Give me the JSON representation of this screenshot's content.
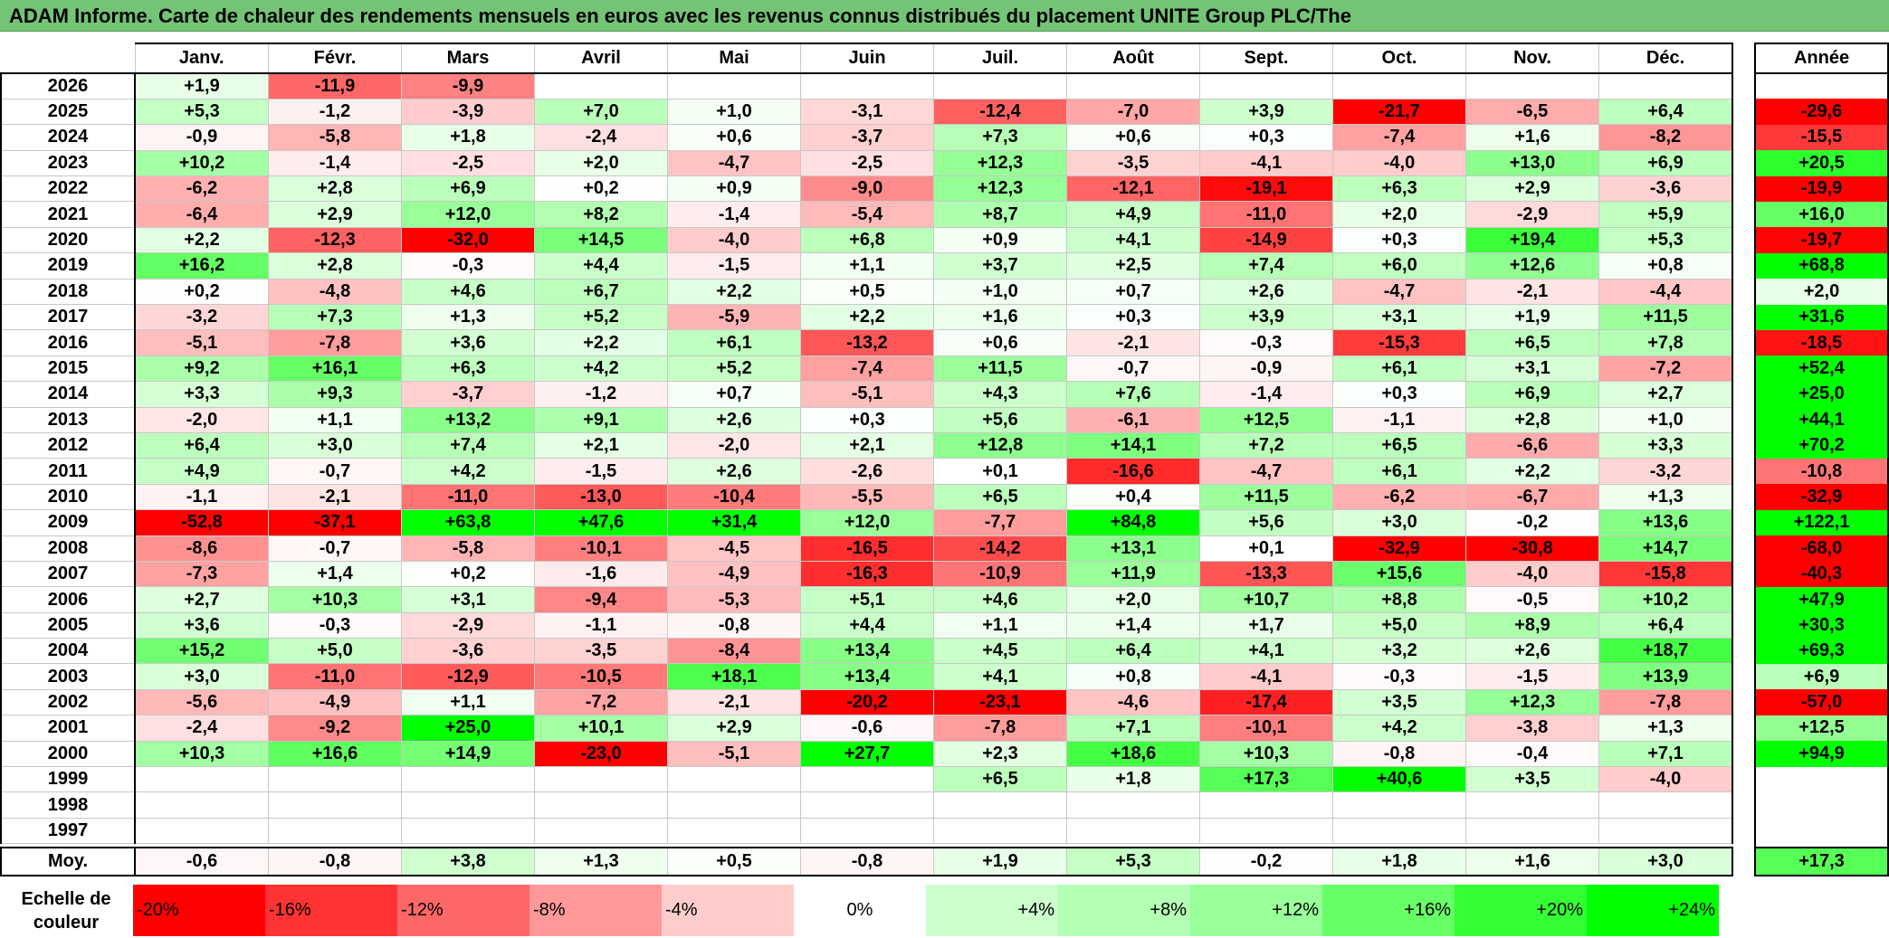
{
  "title": "ADAM Informe. Carte de chaleur des rendements mensuels en euros avec les revenus connus distribués du placement UNITE Group PLC/The",
  "chart_data": {
    "type": "heatmap",
    "columns": [
      "Janv.",
      "Févr.",
      "Mars",
      "Avril",
      "Mai",
      "Juin",
      "Juil.",
      "Août",
      "Sept.",
      "Oct.",
      "Nov.",
      "Déc."
    ],
    "annual_label": "Année",
    "avg_label": "Moy.",
    "rows": [
      {
        "year": "2026",
        "values": [
          "+1,9",
          "-11,9",
          "-9,9",
          "",
          "",
          "",
          "",
          "",
          "",
          "",
          "",
          ""
        ],
        "annual": ""
      },
      {
        "year": "2025",
        "values": [
          "+5,3",
          "-1,2",
          "-3,9",
          "+7,0",
          "+1,0",
          "-3,1",
          "-12,4",
          "-7,0",
          "+3,9",
          "-21,7",
          "-6,5",
          "+6,4"
        ],
        "annual": "-29,6"
      },
      {
        "year": "2024",
        "values": [
          "-0,9",
          "-5,8",
          "+1,8",
          "-2,4",
          "+0,6",
          "-3,7",
          "+7,3",
          "+0,6",
          "+0,3",
          "-7,4",
          "+1,6",
          "-8,2"
        ],
        "annual": "-15,5"
      },
      {
        "year": "2023",
        "values": [
          "+10,2",
          "-1,4",
          "-2,5",
          "+2,0",
          "-4,7",
          "-2,5",
          "+12,3",
          "-3,5",
          "-4,1",
          "-4,0",
          "+13,0",
          "+6,9"
        ],
        "annual": "+20,5"
      },
      {
        "year": "2022",
        "values": [
          "-6,2",
          "+2,8",
          "+6,9",
          "+0,2",
          "+0,9",
          "-9,0",
          "+12,3",
          "-12,1",
          "-19,1",
          "+6,3",
          "+2,9",
          "-3,6"
        ],
        "annual": "-19,9"
      },
      {
        "year": "2021",
        "values": [
          "-6,4",
          "+2,9",
          "+12,0",
          "+8,2",
          "-1,4",
          "-5,4",
          "+8,7",
          "+4,9",
          "-11,0",
          "+2,0",
          "-2,9",
          "+5,9"
        ],
        "annual": "+16,0"
      },
      {
        "year": "2020",
        "values": [
          "+2,2",
          "-12,3",
          "-32,0",
          "+14,5",
          "-4,0",
          "+6,8",
          "+0,9",
          "+4,1",
          "-14,9",
          "+0,3",
          "+19,4",
          "+5,3"
        ],
        "annual": "-19,7"
      },
      {
        "year": "2019",
        "values": [
          "+16,2",
          "+2,8",
          "-0,3",
          "+4,4",
          "-1,5",
          "+1,1",
          "+3,7",
          "+2,5",
          "+7,4",
          "+6,0",
          "+12,6",
          "+0,8"
        ],
        "annual": "+68,8"
      },
      {
        "year": "2018",
        "values": [
          "+0,2",
          "-4,8",
          "+4,6",
          "+6,7",
          "+2,2",
          "+0,5",
          "+1,0",
          "+0,7",
          "+2,6",
          "-4,7",
          "-2,1",
          "-4,4"
        ],
        "annual": "+2,0"
      },
      {
        "year": "2017",
        "values": [
          "-3,2",
          "+7,3",
          "+1,3",
          "+5,2",
          "-5,9",
          "+2,2",
          "+1,6",
          "+0,3",
          "+3,9",
          "+3,1",
          "+1,9",
          "+11,5"
        ],
        "annual": "+31,6"
      },
      {
        "year": "2016",
        "values": [
          "-5,1",
          "-7,8",
          "+3,6",
          "+2,2",
          "+6,1",
          "-13,2",
          "+0,6",
          "-2,1",
          "-0,3",
          "-15,3",
          "+6,5",
          "+7,8"
        ],
        "annual": "-18,5"
      },
      {
        "year": "2015",
        "values": [
          "+9,2",
          "+16,1",
          "+6,3",
          "+4,2",
          "+5,2",
          "-7,4",
          "+11,5",
          "-0,7",
          "-0,9",
          "+6,1",
          "+3,1",
          "-7,2"
        ],
        "annual": "+52,4"
      },
      {
        "year": "2014",
        "values": [
          "+3,3",
          "+9,3",
          "-3,7",
          "-1,2",
          "+0,7",
          "-5,1",
          "+4,3",
          "+7,6",
          "-1,4",
          "+0,3",
          "+6,9",
          "+2,7"
        ],
        "annual": "+25,0"
      },
      {
        "year": "2013",
        "values": [
          "-2,0",
          "+1,1",
          "+13,2",
          "+9,1",
          "+2,6",
          "+0,3",
          "+5,6",
          "-6,1",
          "+12,5",
          "-1,1",
          "+2,8",
          "+1,0"
        ],
        "annual": "+44,1"
      },
      {
        "year": "2012",
        "values": [
          "+6,4",
          "+3,0",
          "+7,4",
          "+2,1",
          "-2,0",
          "+2,1",
          "+12,8",
          "+14,1",
          "+7,2",
          "+6,5",
          "-6,6",
          "+3,3"
        ],
        "annual": "+70,2"
      },
      {
        "year": "2011",
        "values": [
          "+4,9",
          "-0,7",
          "+4,2",
          "-1,5",
          "+2,6",
          "-2,6",
          "+0,1",
          "-16,6",
          "-4,7",
          "+6,1",
          "+2,2",
          "-3,2"
        ],
        "annual": "-10,8"
      },
      {
        "year": "2010",
        "values": [
          "-1,1",
          "-2,1",
          "-11,0",
          "-13,0",
          "-10,4",
          "-5,5",
          "+6,5",
          "+0,4",
          "+11,5",
          "-6,2",
          "-6,7",
          "+1,3"
        ],
        "annual": "-32,9"
      },
      {
        "year": "2009",
        "values": [
          "-52,8",
          "-37,1",
          "+63,8",
          "+47,6",
          "+31,4",
          "+12,0",
          "-7,7",
          "+84,8",
          "+5,6",
          "+3,0",
          "-0,2",
          "+13,6"
        ],
        "annual": "+122,1"
      },
      {
        "year": "2008",
        "values": [
          "-8,6",
          "-0,7",
          "-5,8",
          "-10,1",
          "-4,5",
          "-16,5",
          "-14,2",
          "+13,1",
          "+0,1",
          "-32,9",
          "-30,8",
          "+14,7"
        ],
        "annual": "-68,0"
      },
      {
        "year": "2007",
        "values": [
          "-7,3",
          "+1,4",
          "+0,2",
          "-1,6",
          "-4,9",
          "-16,3",
          "-10,9",
          "+11,9",
          "-13,3",
          "+15,6",
          "-4,0",
          "-15,8"
        ],
        "annual": "-40,3"
      },
      {
        "year": "2006",
        "values": [
          "+2,7",
          "+10,3",
          "+3,1",
          "-9,4",
          "-5,3",
          "+5,1",
          "+4,6",
          "+2,0",
          "+10,7",
          "+8,8",
          "-0,5",
          "+10,2"
        ],
        "annual": "+47,9"
      },
      {
        "year": "2005",
        "values": [
          "+3,6",
          "-0,3",
          "-2,9",
          "-1,1",
          "-0,8",
          "+4,4",
          "+1,1",
          "+1,4",
          "+1,7",
          "+5,0",
          "+8,9",
          "+6,4"
        ],
        "annual": "+30,3"
      },
      {
        "year": "2004",
        "values": [
          "+15,2",
          "+5,0",
          "-3,6",
          "-3,5",
          "-8,4",
          "+13,4",
          "+4,5",
          "+6,4",
          "+4,1",
          "+3,2",
          "+2,6",
          "+18,7"
        ],
        "annual": "+69,3"
      },
      {
        "year": "2003",
        "values": [
          "+3,0",
          "-11,0",
          "-12,9",
          "-10,5",
          "+18,1",
          "+13,4",
          "+4,1",
          "+0,8",
          "-4,1",
          "-0,3",
          "-1,5",
          "+13,9"
        ],
        "annual": "+6,9"
      },
      {
        "year": "2002",
        "values": [
          "-5,6",
          "-4,9",
          "+1,1",
          "-7,2",
          "-2,1",
          "-20,2",
          "-23,1",
          "-4,6",
          "-17,4",
          "+3,5",
          "+12,3",
          "-7,8"
        ],
        "annual": "-57,0"
      },
      {
        "year": "2001",
        "values": [
          "-2,4",
          "-9,2",
          "+25,0",
          "+10,1",
          "+2,9",
          "-0,6",
          "-7,8",
          "+7,1",
          "-10,1",
          "+4,2",
          "-3,8",
          "+1,3"
        ],
        "annual": "+12,5"
      },
      {
        "year": "2000",
        "values": [
          "+10,3",
          "+16,6",
          "+14,9",
          "-23,0",
          "-5,1",
          "+27,7",
          "+2,3",
          "+18,6",
          "+10,3",
          "-0,8",
          "-0,4",
          "+7,1"
        ],
        "annual": "+94,9"
      },
      {
        "year": "1999",
        "values": [
          "",
          "",
          "",
          "",
          "",
          "",
          "+6,5",
          "+1,8",
          "+17,3",
          "+40,6",
          "+3,5",
          "-4,0"
        ],
        "annual": ""
      },
      {
        "year": "1998",
        "values": [
          "",
          "",
          "",
          "",
          "",
          "",
          "",
          "",
          "",
          "",
          "",
          ""
        ],
        "annual": ""
      },
      {
        "year": "1997",
        "values": [
          "",
          "",
          "",
          "",
          "",
          "",
          "",
          "",
          "",
          "",
          "",
          ""
        ],
        "annual": ""
      }
    ],
    "averages": [
      "-0,6",
      "-0,8",
      "+3,8",
      "+1,3",
      "+0,5",
      "-0,8",
      "+1,9",
      "+5,3",
      "-0,2",
      "+1,8",
      "+1,6",
      "+3,0"
    ],
    "annual_average": "+17,3",
    "scale_label": "Echelle de couleur",
    "scale": [
      {
        "label": "-20%",
        "value": -20,
        "color": "#ff0000"
      },
      {
        "label": "-16%",
        "value": -16,
        "color": "#ff3333"
      },
      {
        "label": "-12%",
        "value": -12,
        "color": "#ff6666"
      },
      {
        "label": "-8%",
        "value": -8,
        "color": "#ff9999"
      },
      {
        "label": "-4%",
        "value": -4,
        "color": "#ffcccc"
      },
      {
        "label": "0%",
        "value": 0,
        "color": "#ffffff"
      },
      {
        "label": "+4%",
        "value": 4,
        "color": "#ccffcc"
      },
      {
        "label": "+8%",
        "value": 8,
        "color": "#b3ffb3"
      },
      {
        "label": "+12%",
        "value": 12,
        "color": "#99ff99"
      },
      {
        "label": "+16%",
        "value": 16,
        "color": "#66ff66"
      },
      {
        "label": "+20%",
        "value": 20,
        "color": "#33ff33"
      },
      {
        "label": "+24%",
        "value": 24,
        "color": "#00ff00"
      }
    ]
  }
}
